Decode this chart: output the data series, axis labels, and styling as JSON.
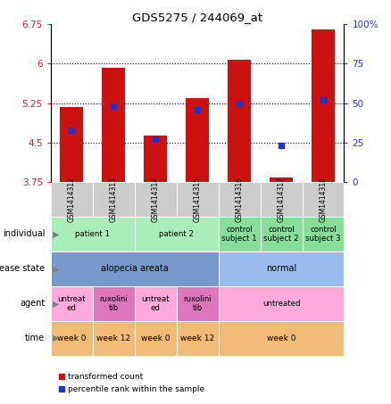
{
  "title": "GDS5275 / 244069_at",
  "samples": [
    "GSM1414312",
    "GSM1414313",
    "GSM1414314",
    "GSM1414315",
    "GSM1414316",
    "GSM1414317",
    "GSM1414318"
  ],
  "transformed_count": [
    5.17,
    5.92,
    4.63,
    5.35,
    6.08,
    3.83,
    6.65
  ],
  "percentile_rank": [
    33,
    48,
    27,
    46,
    50,
    23,
    52
  ],
  "ylim_left": [
    3.75,
    6.75
  ],
  "ylim_right": [
    0,
    100
  ],
  "yticks_left": [
    3.75,
    4.5,
    5.25,
    6.0,
    6.75
  ],
  "yticks_left_labels": [
    "3.75",
    "4.5",
    "5.25",
    "6",
    "6.75"
  ],
  "yticks_right": [
    0,
    25,
    50,
    75,
    100
  ],
  "yticks_right_labels": [
    "0",
    "25",
    "50",
    "75",
    "100%"
  ],
  "bar_color": "#cc1111",
  "dot_color": "#2233cc",
  "bg_color": "#ffffff",
  "gsm_bg": "#cccccc",
  "ind_color_patient": "#aaeebb",
  "ind_color_control": "#88dd99",
  "disease_areata_color": "#7799cc",
  "disease_normal_color": "#99bbee",
  "agent_untreated_color": "#ffaadd",
  "agent_ruxo_color": "#dd77bb",
  "time_color": "#f0bb77",
  "bar_width": 0.55,
  "row_labels": [
    "individual",
    "disease state",
    "agent",
    "time"
  ],
  "legend_label_bar": "transformed count",
  "legend_label_dot": "percentile rank within the sample"
}
